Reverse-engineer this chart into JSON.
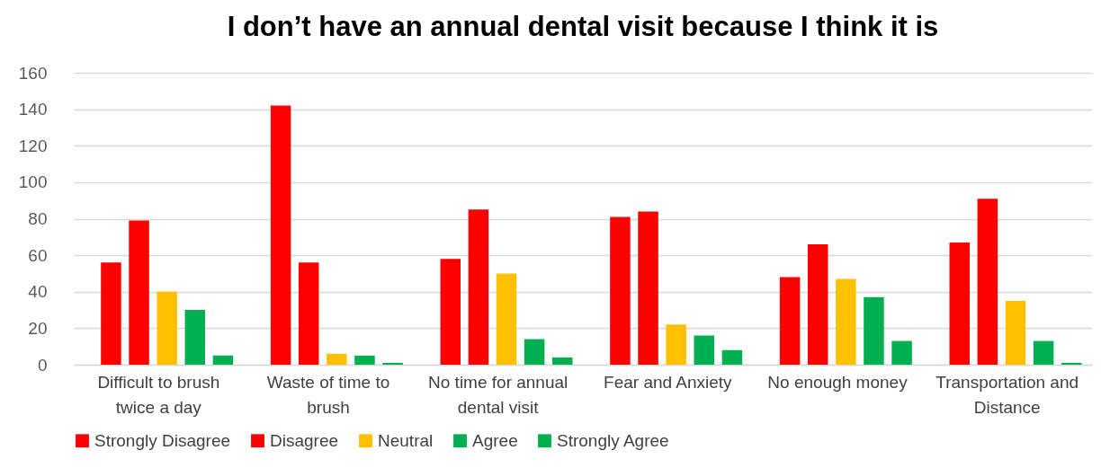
{
  "chart_data": {
    "type": "bar",
    "title": "I don’t have an annual dental visit because I think it is",
    "categories": [
      "Difficult to brush twice a day",
      "Waste of time to brush",
      "No time for annual dental visit",
      "Fear and Anxiety",
      "No enough money",
      "Transportation and Distance"
    ],
    "series": [
      {
        "name": "Strongly Disagree",
        "color": "#ff0000",
        "values": [
          56,
          142,
          58,
          81,
          48,
          67
        ]
      },
      {
        "name": "Disagree",
        "color": "#ff0000",
        "values": [
          79,
          56,
          85,
          84,
          66,
          91
        ]
      },
      {
        "name": "Neutral",
        "color": "#ffc000",
        "values": [
          40,
          6,
          50,
          22,
          47,
          35
        ]
      },
      {
        "name": "Agree",
        "color": "#00b050",
        "values": [
          30,
          5,
          14,
          16,
          37,
          13
        ]
      },
      {
        "name": "Strongly Agree",
        "color": "#00b050",
        "values": [
          5,
          1,
          4,
          8,
          13,
          1
        ]
      }
    ],
    "ylim": [
      0,
      160
    ],
    "yticks": [
      0,
      20,
      40,
      60,
      80,
      100,
      120,
      140,
      160
    ],
    "grid": "y",
    "legend": "bottom"
  }
}
